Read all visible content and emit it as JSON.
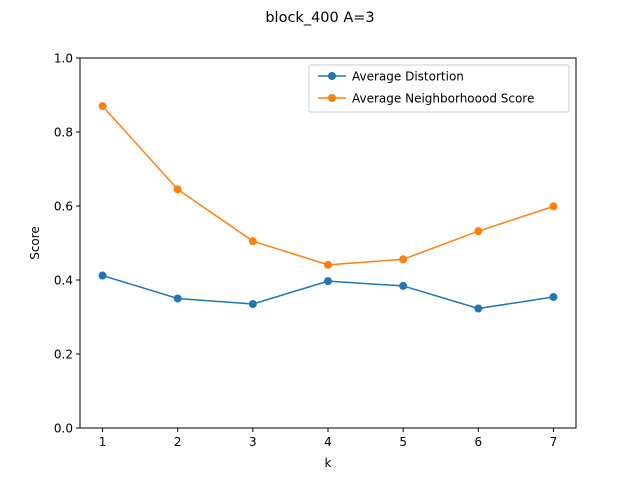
{
  "chart_data": {
    "type": "line",
    "title": "block_400 A=3",
    "xlabel": "k",
    "ylabel": "Score",
    "x": [
      1,
      2,
      3,
      4,
      5,
      6,
      7
    ],
    "xlim": [
      0.7,
      7.3
    ],
    "ylim": [
      0.0,
      1.0
    ],
    "xticks": [
      "1",
      "2",
      "3",
      "4",
      "5",
      "6",
      "7"
    ],
    "yticks": [
      "0.0",
      "0.2",
      "0.4",
      "0.6",
      "0.8",
      "1.0"
    ],
    "grid": false,
    "legend_position": "top-right",
    "series": [
      {
        "name": "Average Distortion",
        "color": "#1f77b4",
        "marker": "circle",
        "values": [
          0.412,
          0.35,
          0.335,
          0.397,
          0.384,
          0.323,
          0.354
        ]
      },
      {
        "name": "Average Neighborhoood Score",
        "color": "#ff7f0e",
        "marker": "circle",
        "values": [
          0.87,
          0.645,
          0.505,
          0.441,
          0.456,
          0.532,
          0.599
        ]
      }
    ]
  }
}
